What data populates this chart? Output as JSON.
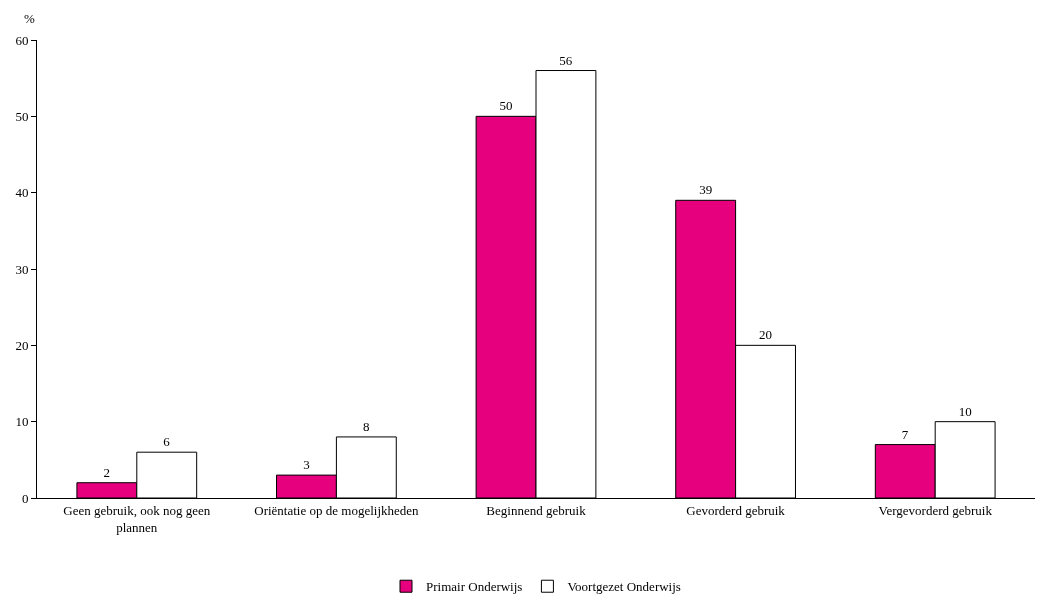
{
  "chart_data": {
    "type": "bar",
    "ylabel": "%",
    "categories": [
      "Geen gebruik, ook nog geen plannen",
      "Oriëntatie op de mogelijkheden",
      "Beginnend gebruik",
      "Gevorderd gebruik",
      "Vergevorderd gebruik"
    ],
    "series": [
      {
        "name": "Primair Onderwijs",
        "color": "#e6007e",
        "values": [
          2,
          3,
          50,
          39,
          7
        ]
      },
      {
        "name": "Voortgezet Onderwijs",
        "color": "#ffffff",
        "values": [
          6,
          8,
          56,
          20,
          10
        ]
      }
    ],
    "ylim": [
      0,
      60
    ],
    "yticks": [
      0,
      10,
      20,
      30,
      40,
      50,
      60
    ],
    "grid": false,
    "legend": "bottom",
    "data_labels": true
  }
}
